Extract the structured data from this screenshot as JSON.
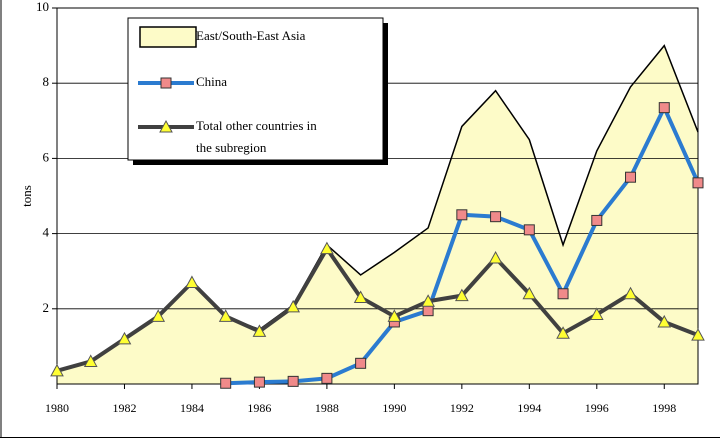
{
  "chart_data": {
    "type": "line",
    "y_label": "tons",
    "x": [
      1980,
      1981,
      1982,
      1983,
      1984,
      1985,
      1986,
      1987,
      1988,
      1989,
      1990,
      1991,
      1992,
      1993,
      1994,
      1995,
      1996,
      1997,
      1998,
      1999
    ],
    "xlim": [
      1980,
      1999
    ],
    "xticks": [
      1980,
      1982,
      1984,
      1986,
      1988,
      1990,
      1992,
      1994,
      1996,
      1998
    ],
    "ylim": [
      0,
      10
    ],
    "yticks": [
      2,
      4,
      6,
      8,
      10
    ],
    "grid": true,
    "legend": "top-left",
    "series": [
      {
        "name": "East/South-East Asia",
        "kind": "area",
        "color": "#fdfbc8",
        "values": [
          0.35,
          0.6,
          1.2,
          1.8,
          2.7,
          1.8,
          1.45,
          2.1,
          3.7,
          2.9,
          3.5,
          4.15,
          6.85,
          7.8,
          6.5,
          3.7,
          6.2,
          7.9,
          9.0,
          6.7
        ]
      },
      {
        "name": "China",
        "kind": "line",
        "marker": "square",
        "color": "#2b7bd0",
        "marker_color": "#f08a8a",
        "values": [
          null,
          null,
          null,
          null,
          null,
          0.02,
          0.05,
          0.07,
          0.15,
          0.55,
          1.65,
          1.95,
          4.5,
          4.45,
          4.1,
          2.4,
          4.35,
          5.5,
          7.35,
          5.35
        ]
      },
      {
        "name": "Total other countries in the subregion",
        "kind": "line",
        "marker": "triangle",
        "color": "#404040",
        "marker_color": "#ffff33",
        "values": [
          0.35,
          0.6,
          1.2,
          1.8,
          2.7,
          1.8,
          1.4,
          2.05,
          3.6,
          2.3,
          1.8,
          2.2,
          2.35,
          3.35,
          2.4,
          1.35,
          1.85,
          2.4,
          1.65,
          1.3
        ]
      }
    ]
  }
}
